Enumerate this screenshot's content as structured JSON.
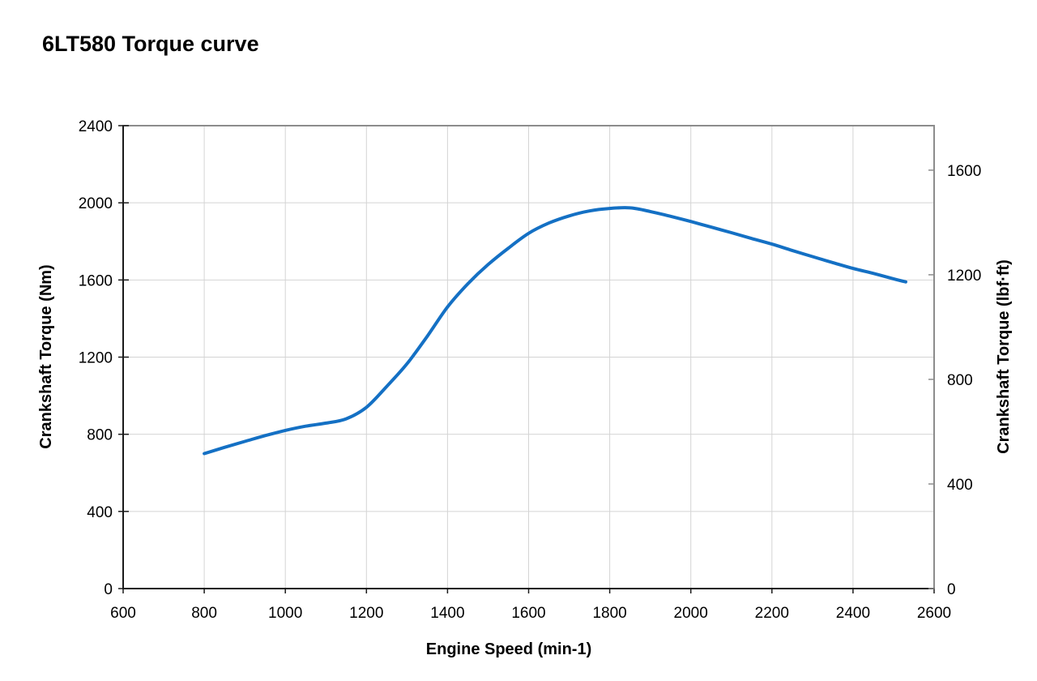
{
  "page": {
    "background": "#ffffff"
  },
  "colors": {
    "curve": "#1470c4",
    "grid": "#d4d4d4",
    "axis": "#1a1a1a",
    "frame": "#8c8c8c",
    "text": "#000000",
    "background": "#ffffff"
  },
  "chart_data": {
    "type": "line",
    "title": "6LT580 Torque curve",
    "xlabel": "Engine Speed (min-1)",
    "ylabel_left": "Crankshaft Torque (Nm)",
    "ylabel_right": "Crankshaft Torque (lbf·ft)",
    "xlim": [
      600,
      2600
    ],
    "x_ticks": [
      600,
      800,
      1000,
      1200,
      1400,
      1600,
      1800,
      2000,
      2200,
      2400,
      2600
    ],
    "ylim_left": [
      0,
      2400
    ],
    "y_ticks_left": [
      0,
      400,
      800,
      1200,
      1600,
      2000,
      2400
    ],
    "ylim_right": [
      0,
      1770
    ],
    "y_ticks_right": [
      0,
      400,
      800,
      1200,
      1600
    ],
    "lbfft_to_nm": 1.35582,
    "grid": true,
    "legend": "none",
    "series": [
      {
        "name": "Crankshaft Torque",
        "color": "#1470c4",
        "x": [
          800,
          850,
          900,
          950,
          1000,
          1050,
          1100,
          1150,
          1200,
          1250,
          1300,
          1350,
          1400,
          1450,
          1500,
          1550,
          1600,
          1650,
          1700,
          1750,
          1800,
          1850,
          1900,
          1950,
          2000,
          2050,
          2100,
          2150,
          2200,
          2250,
          2300,
          2350,
          2400,
          2450,
          2500,
          2530
        ],
        "y": [
          700,
          732,
          763,
          793,
          820,
          842,
          858,
          880,
          940,
          1048,
          1165,
          1308,
          1460,
          1580,
          1680,
          1765,
          1842,
          1895,
          1932,
          1958,
          1971,
          1974,
          1955,
          1930,
          1903,
          1874,
          1845,
          1815,
          1786,
          1753,
          1721,
          1690,
          1660,
          1634,
          1606,
          1590
        ]
      }
    ]
  }
}
